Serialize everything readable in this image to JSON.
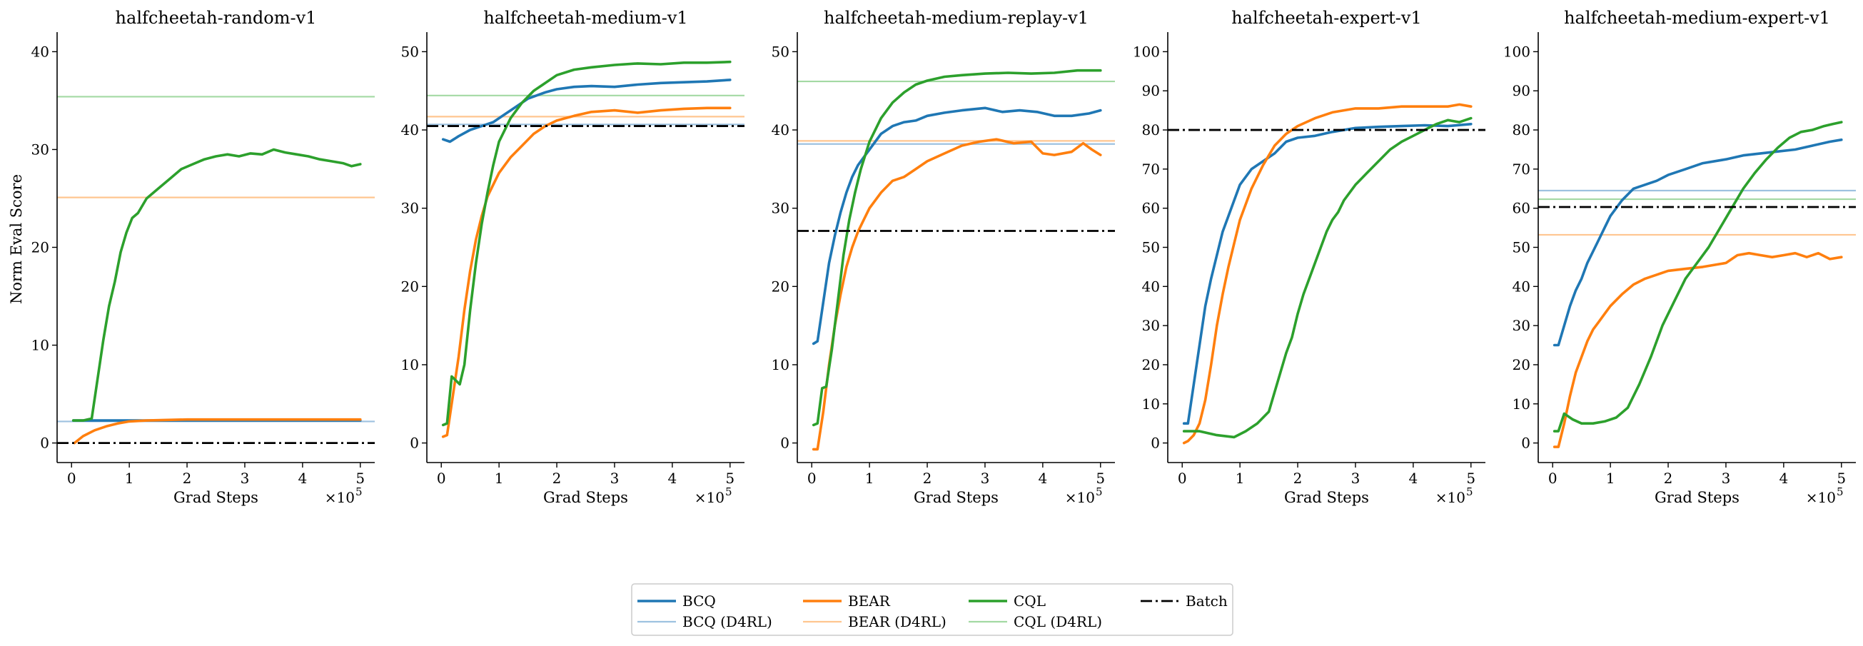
{
  "figure": {
    "ylabel": "Norm Eval Score",
    "xlabel": "Grad Steps",
    "x_multiplier": "×10",
    "x_multiplier_exp": "5"
  },
  "legend": [
    {
      "label": "BCQ",
      "color": "#1f77b4",
      "style": "solid"
    },
    {
      "label": "BCQ (D4RL)",
      "color": "#9ec2e0",
      "style": "thin"
    },
    {
      "label": "BEAR",
      "color": "#ff7f0e",
      "style": "solid"
    },
    {
      "label": "BEAR (D4RL)",
      "color": "#ffc690",
      "style": "thin"
    },
    {
      "label": "CQL",
      "color": "#2ca02c",
      "style": "solid"
    },
    {
      "label": "CQL (D4RL)",
      "color": "#a3d9a3",
      "style": "thin"
    },
    {
      "label": "Batch",
      "color": "#000000",
      "style": "dashdot"
    }
  ],
  "chart_data": [
    {
      "type": "line",
      "title": "halfcheetah-random-v1",
      "xlabel": "Grad Steps",
      "ylabel": "Norm Eval Score",
      "xlim": [
        -0.25,
        5.25
      ],
      "ylim": [
        -2,
        42
      ],
      "xticks": [
        0,
        1,
        2,
        3,
        4,
        5
      ],
      "yticks": [
        0,
        10,
        20,
        30,
        40
      ],
      "series": [
        {
          "name": "BCQ",
          "x": [
            0.03,
            0.5,
            1,
            2,
            3,
            4,
            5
          ],
          "y": [
            2.3,
            2.3,
            2.3,
            2.3,
            2.3,
            2.3,
            2.3
          ]
        },
        {
          "name": "BEAR",
          "x": [
            0.05,
            0.2,
            0.4,
            0.6,
            0.8,
            1.0,
            1.3,
            1.6,
            2.0,
            3,
            4,
            5
          ],
          "y": [
            0,
            0.7,
            1.3,
            1.7,
            2.0,
            2.2,
            2.3,
            2.35,
            2.4,
            2.4,
            2.4,
            2.4
          ]
        },
        {
          "name": "CQL",
          "x": [
            0.03,
            0.2,
            0.35,
            0.45,
            0.55,
            0.65,
            0.75,
            0.85,
            0.95,
            1.05,
            1.15,
            1.3,
            1.5,
            1.7,
            1.9,
            2.1,
            2.3,
            2.5,
            2.7,
            2.9,
            3.1,
            3.3,
            3.5,
            3.7,
            3.9,
            4.1,
            4.3,
            4.5,
            4.7,
            4.85,
            5.0
          ],
          "y": [
            2.3,
            2.3,
            2.5,
            6.5,
            10.5,
            14,
            16.5,
            19.5,
            21.5,
            23,
            23.5,
            25,
            26,
            27,
            28,
            28.5,
            29,
            29.3,
            29.5,
            29.3,
            29.6,
            29.5,
            30,
            29.7,
            29.5,
            29.3,
            29,
            28.8,
            28.6,
            28.3,
            28.5
          ]
        }
      ],
      "reference_lines": {
        "BCQ (D4RL)": 2.2,
        "BEAR (D4RL)": 25.1,
        "CQL (D4RL)": 35.4,
        "Batch": 0
      }
    },
    {
      "type": "line",
      "title": "halfcheetah-medium-v1",
      "xlabel": "Grad Steps",
      "xlim": [
        -0.25,
        5.25
      ],
      "ylim": [
        -2.5,
        52.5
      ],
      "xticks": [
        0,
        1,
        2,
        3,
        4,
        5
      ],
      "yticks": [
        0,
        10,
        20,
        30,
        40,
        50
      ],
      "series": [
        {
          "name": "BCQ",
          "x": [
            0.03,
            0.15,
            0.3,
            0.5,
            0.7,
            0.9,
            1.1,
            1.3,
            1.5,
            1.8,
            2.0,
            2.3,
            2.6,
            3.0,
            3.4,
            3.8,
            4.2,
            4.6,
            5.0
          ],
          "y": [
            38.8,
            38.5,
            39.2,
            40,
            40.5,
            41,
            42,
            43,
            44,
            44.8,
            45.2,
            45.5,
            45.6,
            45.5,
            45.8,
            46,
            46.1,
            46.2,
            46.4
          ]
        },
        {
          "name": "BEAR",
          "x": [
            0.03,
            0.1,
            0.2,
            0.3,
            0.4,
            0.5,
            0.6,
            0.7,
            0.8,
            0.9,
            1.0,
            1.2,
            1.4,
            1.6,
            1.8,
            2.0,
            2.3,
            2.6,
            3.0,
            3.4,
            3.8,
            4.2,
            4.6,
            5.0
          ],
          "y": [
            0.8,
            1,
            6,
            11,
            17,
            22,
            26,
            29,
            31.5,
            33,
            34.5,
            36.5,
            38,
            39.5,
            40.5,
            41.2,
            41.8,
            42.3,
            42.5,
            42.2,
            42.5,
            42.7,
            42.8,
            42.8
          ]
        },
        {
          "name": "CQL",
          "x": [
            0.03,
            0.1,
            0.18,
            0.25,
            0.32,
            0.4,
            0.5,
            0.6,
            0.7,
            0.8,
            0.9,
            1.0,
            1.2,
            1.4,
            1.6,
            1.8,
            2.0,
            2.3,
            2.6,
            3.0,
            3.4,
            3.8,
            4.2,
            4.6,
            5.0
          ],
          "y": [
            2.3,
            2.5,
            8.5,
            8,
            7.5,
            10,
            17,
            23,
            28,
            32,
            35.5,
            38.5,
            41.5,
            43.5,
            45,
            46,
            47,
            47.7,
            48,
            48.3,
            48.5,
            48.4,
            48.6,
            48.6,
            48.7
          ]
        }
      ],
      "reference_lines": {
        "BCQ (D4RL)": 40.7,
        "BEAR (D4RL)": 41.7,
        "CQL (D4RL)": 44.4,
        "Batch": 40.5
      }
    },
    {
      "type": "line",
      "title": "halfcheetah-medium-replay-v1",
      "xlabel": "Grad Steps",
      "xlim": [
        -0.25,
        5.25
      ],
      "ylim": [
        -2.5,
        52.5
      ],
      "xticks": [
        0,
        1,
        2,
        3,
        4,
        5
      ],
      "yticks": [
        0,
        10,
        20,
        30,
        40,
        50
      ],
      "series": [
        {
          "name": "BCQ",
          "x": [
            0.03,
            0.1,
            0.2,
            0.3,
            0.4,
            0.5,
            0.6,
            0.7,
            0.8,
            0.9,
            1.0,
            1.2,
            1.4,
            1.6,
            1.8,
            2.0,
            2.3,
            2.6,
            3.0,
            3.3,
            3.6,
            3.9,
            4.2,
            4.5,
            4.8,
            5.0
          ],
          "y": [
            12.7,
            13,
            18,
            23,
            26.5,
            29.5,
            32,
            34,
            35.5,
            36.5,
            37.5,
            39.5,
            40.5,
            41,
            41.2,
            41.8,
            42.2,
            42.5,
            42.8,
            42.3,
            42.5,
            42.3,
            41.8,
            41.8,
            42.1,
            42.5
          ]
        },
        {
          "name": "BEAR",
          "x": [
            0.03,
            0.1,
            0.2,
            0.3,
            0.4,
            0.5,
            0.6,
            0.7,
            0.8,
            0.9,
            1.0,
            1.2,
            1.4,
            1.6,
            1.8,
            2.0,
            2.3,
            2.6,
            2.9,
            3.2,
            3.5,
            3.8,
            4.0,
            4.2,
            4.5,
            4.7,
            4.85,
            5.0
          ],
          "y": [
            -0.8,
            -0.8,
            4,
            10,
            15,
            19,
            22.5,
            25,
            27,
            28.5,
            30,
            32,
            33.5,
            34,
            35,
            36,
            37,
            38,
            38.5,
            38.8,
            38.3,
            38.5,
            37,
            36.8,
            37.2,
            38.3,
            37.5,
            36.8
          ]
        },
        {
          "name": "CQL",
          "x": [
            0.03,
            0.1,
            0.18,
            0.25,
            0.35,
            0.45,
            0.55,
            0.65,
            0.75,
            0.85,
            1.0,
            1.2,
            1.4,
            1.6,
            1.8,
            2.0,
            2.3,
            2.6,
            3.0,
            3.4,
            3.8,
            4.2,
            4.6,
            5.0
          ],
          "y": [
            2.3,
            2.5,
            7,
            7.2,
            12,
            18,
            24,
            28.5,
            32,
            35,
            38.5,
            41.5,
            43.5,
            44.8,
            45.8,
            46.3,
            46.8,
            47,
            47.2,
            47.3,
            47.2,
            47.3,
            47.6,
            47.6
          ]
        }
      ],
      "reference_lines": {
        "BCQ (D4RL)": 38.2,
        "BEAR (D4RL)": 38.6,
        "CQL (D4RL)": 46.2,
        "Batch": 27.1
      }
    },
    {
      "type": "line",
      "title": "halfcheetah-expert-v1",
      "xlabel": "Grad Steps",
      "xlim": [
        -0.25,
        5.25
      ],
      "ylim": [
        -5,
        105
      ],
      "xticks": [
        0,
        1,
        2,
        3,
        4,
        5
      ],
      "yticks": [
        0,
        10,
        20,
        30,
        40,
        50,
        60,
        70,
        80,
        90,
        100
      ],
      "series": [
        {
          "name": "BCQ",
          "x": [
            0.03,
            0.1,
            0.2,
            0.3,
            0.4,
            0.5,
            0.6,
            0.7,
            0.8,
            0.9,
            1.0,
            1.2,
            1.4,
            1.6,
            1.8,
            2.0,
            2.3,
            2.6,
            3.0,
            3.4,
            3.8,
            4.2,
            4.6,
            5.0
          ],
          "y": [
            5,
            5,
            15,
            25,
            35,
            42,
            48,
            54,
            58,
            62,
            66,
            70,
            72,
            74,
            77,
            78,
            78.5,
            79.5,
            80.5,
            80.8,
            81,
            81.2,
            81,
            81.5
          ]
        },
        {
          "name": "BEAR",
          "x": [
            0.03,
            0.1,
            0.2,
            0.3,
            0.4,
            0.5,
            0.6,
            0.7,
            0.8,
            0.9,
            1.0,
            1.2,
            1.4,
            1.6,
            1.8,
            2.0,
            2.3,
            2.6,
            3.0,
            3.4,
            3.8,
            4.2,
            4.6,
            4.8,
            5.0
          ],
          "y": [
            0,
            0.5,
            2,
            5,
            11,
            20,
            30,
            38,
            45,
            51,
            57,
            65,
            71,
            76,
            79,
            81,
            83,
            84.5,
            85.5,
            85.5,
            86,
            86,
            86,
            86.5,
            86
          ]
        },
        {
          "name": "CQL",
          "x": [
            0.03,
            0.3,
            0.6,
            0.9,
            1.1,
            1.3,
            1.5,
            1.6,
            1.7,
            1.8,
            1.9,
            2.0,
            2.1,
            2.2,
            2.3,
            2.4,
            2.5,
            2.6,
            2.7,
            2.8,
            3.0,
            3.2,
            3.4,
            3.6,
            3.8,
            4.0,
            4.2,
            4.4,
            4.6,
            4.8,
            5.0
          ],
          "y": [
            3,
            3,
            2,
            1.5,
            3,
            5,
            8,
            13,
            18,
            23,
            27,
            33,
            38,
            42,
            46,
            50,
            54,
            57,
            59,
            62,
            66,
            69,
            72,
            75,
            77,
            78.5,
            80,
            81.5,
            82.5,
            82,
            83
          ]
        }
      ],
      "reference_lines": {
        "BCQ (D4RL)": null,
        "BEAR (D4RL)": null,
        "CQL (D4RL)": null,
        "Batch": 80
      }
    },
    {
      "type": "line",
      "title": "halfcheetah-medium-expert-v1",
      "xlabel": "Grad Steps",
      "xlim": [
        -0.25,
        5.25
      ],
      "ylim": [
        -5,
        105
      ],
      "xticks": [
        0,
        1,
        2,
        3,
        4,
        5
      ],
      "yticks": [
        0,
        10,
        20,
        30,
        40,
        50,
        60,
        70,
        80,
        90,
        100
      ],
      "series": [
        {
          "name": "BCQ",
          "x": [
            0.03,
            0.1,
            0.2,
            0.3,
            0.4,
            0.5,
            0.6,
            0.7,
            0.8,
            0.9,
            1.0,
            1.2,
            1.4,
            1.6,
            1.8,
            2.0,
            2.3,
            2.6,
            3.0,
            3.3,
            3.6,
            3.9,
            4.2,
            4.5,
            4.8,
            5.0
          ],
          "y": [
            25,
            25,
            30,
            35,
            39,
            42,
            46,
            49,
            52,
            55,
            58,
            62,
            65,
            66,
            67,
            68.5,
            70,
            71.5,
            72.5,
            73.5,
            74,
            74.5,
            75,
            76,
            77,
            77.5
          ]
        },
        {
          "name": "BEAR",
          "x": [
            0.03,
            0.1,
            0.2,
            0.3,
            0.4,
            0.5,
            0.6,
            0.7,
            0.8,
            0.9,
            1.0,
            1.2,
            1.4,
            1.6,
            1.8,
            2.0,
            2.3,
            2.6,
            3.0,
            3.2,
            3.4,
            3.6,
            3.8,
            4.0,
            4.2,
            4.4,
            4.6,
            4.8,
            5.0
          ],
          "y": [
            -1,
            -1,
            5,
            12,
            18,
            22,
            26,
            29,
            31,
            33,
            35,
            38,
            40.5,
            42,
            43,
            44,
            44.5,
            45,
            46,
            48,
            48.5,
            48,
            47.5,
            48,
            48.5,
            47.5,
            48.5,
            47,
            47.5
          ]
        },
        {
          "name": "CQL",
          "x": [
            0.03,
            0.1,
            0.2,
            0.35,
            0.5,
            0.7,
            0.9,
            1.1,
            1.3,
            1.5,
            1.7,
            1.9,
            2.1,
            2.3,
            2.5,
            2.7,
            2.9,
            3.1,
            3.3,
            3.5,
            3.7,
            3.9,
            4.1,
            4.3,
            4.5,
            4.7,
            4.85,
            5.0
          ],
          "y": [
            3,
            3,
            7.5,
            6,
            5,
            5,
            5.5,
            6.5,
            9,
            15,
            22,
            30,
            36,
            42,
            46,
            50,
            55,
            60,
            65,
            69,
            72.5,
            75.5,
            78,
            79.5,
            80,
            81,
            81.5,
            82
          ]
        }
      ],
      "reference_lines": {
        "BCQ (D4RL)": 64.5,
        "BEAR (D4RL)": 53.2,
        "CQL (D4RL)": 62.3,
        "Batch": 60.3
      }
    }
  ]
}
